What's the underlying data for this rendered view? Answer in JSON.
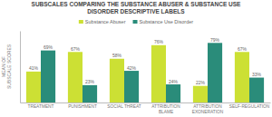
{
  "chart_data": {
    "type": "bar",
    "title": "SUBSCALES COMPARING THE SUBSTANCE ABUSER & SUBSTANCE USE\nDISORDER DESCRIPTIVE LABELS",
    "ylabel": "MEAN OF\nSUBSCALE SCORES",
    "categories": [
      "TREATMENT",
      "PUNISHMENT",
      "SOCIAL THREAT",
      "ATTRIBUTION\nBLAME",
      "ATTRIBUTION\nEXONERATION",
      "SELF-REGULATION"
    ],
    "series": [
      {
        "name": "Substance Abuser",
        "color": "#cce034",
        "values": [
          41,
          67,
          58,
          76,
          22,
          67
        ],
        "value_labels": [
          "41%",
          "67%",
          "58%",
          "76%",
          "22%",
          "67%"
        ]
      },
      {
        "name": "Substance Use Disorder",
        "color": "#2a8c7a",
        "values": [
          69,
          23,
          42,
          24,
          79,
          33
        ],
        "value_labels": [
          "69%",
          "23%",
          "42%",
          "24%",
          "79%",
          "33%"
        ]
      }
    ],
    "ylim": [
      0,
      95
    ],
    "yticks": [],
    "tick_labels": "x",
    "grid": false,
    "legend": "top",
    "data_labels": true
  }
}
